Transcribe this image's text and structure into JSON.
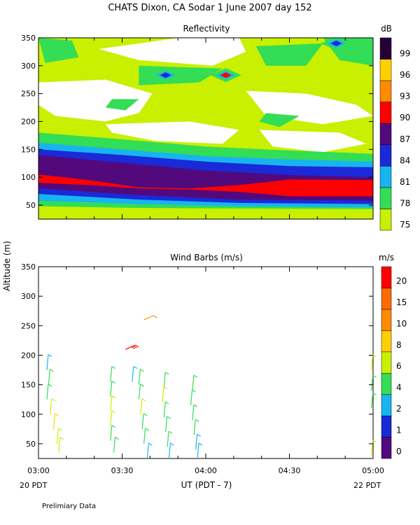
{
  "header": {
    "title": "CHATS Dixon, CA  Sodar    1 June 2007   day 152"
  },
  "chart_data": [
    {
      "type": "heatmap",
      "title": "Reflectivity",
      "ylabel": "Altitude (m)",
      "xlabel": "",
      "y_ticks": [
        50,
        100,
        150,
        200,
        250,
        300,
        350
      ],
      "ylim": [
        25,
        350
      ],
      "x_range": [
        "03:00",
        "05:00"
      ],
      "grid": false,
      "colorbar": {
        "unit": "dB",
        "levels": [
          75,
          78,
          81,
          84,
          87,
          90,
          93,
          96,
          99
        ],
        "colors": [
          "#c8f000",
          "#33dd55",
          "#18b4f0",
          "#1a2ad8",
          "#52097c",
          "#ff0000",
          "#ff8a00",
          "#ffd000",
          "#250038"
        ]
      },
      "bands": [
        {
          "level": 75,
          "color": "#c8f000",
          "profile": [
            [
              0,
              40
            ],
            [
              0.3,
              40
            ],
            [
              0.6,
              38
            ],
            [
              1,
              38
            ]
          ]
        },
        {
          "level": 78,
          "color": "#33dd55",
          "profile": [
            [
              0,
              48
            ],
            [
              0.3,
              45
            ],
            [
              0.6,
              44
            ],
            [
              1,
              43
            ]
          ]
        },
        {
          "level": 81,
          "color": "#18b4f0",
          "profile": [
            [
              0,
              58
            ],
            [
              0.3,
              52
            ],
            [
              0.6,
              48
            ],
            [
              1,
              46
            ]
          ]
        },
        {
          "level": 84,
          "color": "#1a2ad8",
          "profile": [
            [
              0,
              70
            ],
            [
              0.3,
              60
            ],
            [
              0.6,
              54
            ],
            [
              1,
              52
            ]
          ]
        },
        {
          "level": 87,
          "color": "#52097c",
          "profile": [
            [
              0,
              80
            ],
            [
              0.3,
              68
            ],
            [
              0.6,
              60
            ],
            [
              1,
              58
            ]
          ]
        },
        {
          "level": 90,
          "color": "#ff0000",
          "profile": [
            [
              0,
              92
            ],
            [
              0.15,
              90
            ],
            [
              0.3,
              88
            ],
            [
              0.45,
              86
            ],
            [
              0.6,
              82
            ],
            [
              0.75,
              70
            ],
            [
              1,
              70
            ]
          ]
        }
      ],
      "upper_bands": [
        {
          "level": 81,
          "color": "#18b4f0",
          "profile": [
            [
              0,
              162
            ],
            [
              0.25,
              150
            ],
            [
              0.5,
              138
            ],
            [
              0.75,
              132
            ],
            [
              1,
              128
            ]
          ]
        },
        {
          "level": 84,
          "color": "#1a2ad8",
          "profile": [
            [
              0,
              150
            ],
            [
              0.25,
              140
            ],
            [
              0.5,
              128
            ],
            [
              0.75,
              120
            ],
            [
              1,
              118
            ]
          ]
        },
        {
          "level": 87,
          "color": "#52097c",
          "profile": [
            [
              0,
              140
            ],
            [
              0.25,
              126
            ],
            [
              0.5,
              112
            ],
            [
              0.75,
              104
            ],
            [
              1,
              100
            ]
          ]
        },
        {
          "level": 90,
          "color": "#ff0000",
          "profile": [
            [
              0,
              105
            ],
            [
              0.15,
              95
            ],
            [
              0.3,
              82
            ],
            [
              0.45,
              80
            ],
            [
              0.6,
              86
            ],
            [
              0.75,
              96
            ],
            [
              1,
              95
            ]
          ]
        }
      ],
      "hotspots": [
        {
          "x": 0.38,
          "alt": 283,
          "color": "#1a2ad8"
        },
        {
          "x": 0.56,
          "alt": 283,
          "color": "#ff0000"
        },
        {
          "x": 0.89,
          "alt": 340,
          "color": "#1a2ad8"
        }
      ]
    },
    {
      "type": "scatter",
      "title": "Wind Barbs (m/s)",
      "ylabel": "Altitude (m)",
      "xlabel": "UT  (PDT - 7)",
      "x_ticks": [
        "03:00",
        "03:30",
        "04:00",
        "04:30",
        "05:00"
      ],
      "x_tick_hours": [
        0,
        0.5,
        1,
        1.5,
        2
      ],
      "y_ticks": [
        50,
        100,
        150,
        200,
        250,
        300,
        350
      ],
      "ylim": [
        25,
        350
      ],
      "grid": false,
      "x_start_label": "20 PDT",
      "x_end_label": "22 PDT",
      "colorbar": {
        "unit": "m/s",
        "levels": [
          0,
          1,
          2,
          4,
          6,
          8,
          10,
          15,
          20
        ],
        "colors": [
          "#52097c",
          "#1a2ad8",
          "#18b4f0",
          "#33dd55",
          "#c8f000",
          "#ffd000",
          "#ff8a00",
          "#ff6a00",
          "#ff0000"
        ]
      },
      "barbs": [
        {
          "t": 0.05,
          "alt": 175,
          "speed": 3
        },
        {
          "t": 0.06,
          "alt": 150,
          "speed": 4
        },
        {
          "t": 0.05,
          "alt": 125,
          "speed": 4
        },
        {
          "t": 0.07,
          "alt": 100,
          "speed": 7
        },
        {
          "t": 0.09,
          "alt": 75,
          "speed": 8
        },
        {
          "t": 0.11,
          "alt": 50,
          "speed": 7
        },
        {
          "t": 0.12,
          "alt": 35,
          "speed": 6
        },
        {
          "t": 0.43,
          "alt": 155,
          "speed": 4
        },
        {
          "t": 0.43,
          "alt": 130,
          "speed": 5
        },
        {
          "t": 0.43,
          "alt": 105,
          "speed": 7
        },
        {
          "t": 0.43,
          "alt": 80,
          "speed": 6
        },
        {
          "t": 0.43,
          "alt": 55,
          "speed": 5
        },
        {
          "t": 0.45,
          "alt": 35,
          "speed": 4
        },
        {
          "t": 0.56,
          "alt": 155,
          "speed": 3
        },
        {
          "t": 0.52,
          "alt": 210,
          "speed": 20
        },
        {
          "t": 0.63,
          "alt": 260,
          "speed": 10
        },
        {
          "t": 0.6,
          "alt": 150,
          "speed": 4
        },
        {
          "t": 0.6,
          "alt": 125,
          "speed": 5
        },
        {
          "t": 0.61,
          "alt": 100,
          "speed": 6
        },
        {
          "t": 0.62,
          "alt": 75,
          "speed": 5
        },
        {
          "t": 0.63,
          "alt": 50,
          "speed": 4
        },
        {
          "t": 0.65,
          "alt": 25,
          "speed": 3
        },
        {
          "t": 0.75,
          "alt": 145,
          "speed": 4
        },
        {
          "t": 0.74,
          "alt": 120,
          "speed": 6
        },
        {
          "t": 0.75,
          "alt": 95,
          "speed": 5
        },
        {
          "t": 0.76,
          "alt": 70,
          "speed": 5
        },
        {
          "t": 0.77,
          "alt": 45,
          "speed": 4
        },
        {
          "t": 0.78,
          "alt": 25,
          "speed": 3
        },
        {
          "t": 0.92,
          "alt": 140,
          "speed": 4
        },
        {
          "t": 0.91,
          "alt": 115,
          "speed": 5
        },
        {
          "t": 0.92,
          "alt": 90,
          "speed": 5
        },
        {
          "t": 0.93,
          "alt": 65,
          "speed": 4
        },
        {
          "t": 0.94,
          "alt": 40,
          "speed": 3
        },
        {
          "t": 0.95,
          "alt": 25,
          "speed": 3
        },
        {
          "t": 1.99,
          "alt": 175,
          "speed": 7
        },
        {
          "t": 1.99,
          "alt": 140,
          "speed": 4
        },
        {
          "t": 1.99,
          "alt": 110,
          "speed": 5
        },
        {
          "t": 1.99,
          "alt": 30,
          "speed": 6
        }
      ]
    }
  ],
  "footer": {
    "note": "Prelimiary Data"
  }
}
